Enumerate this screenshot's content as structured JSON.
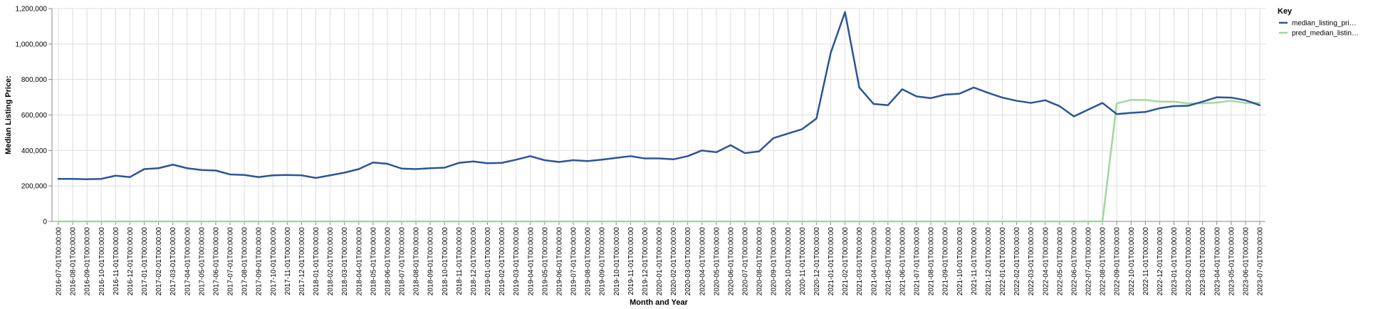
{
  "chart_data": {
    "type": "line",
    "xlabel": "Month and Year",
    "ylabel": "Median Listing Price:",
    "ylim": [
      0,
      1200000
    ],
    "yticks": [
      "0",
      "200,000",
      "400,000",
      "600,000",
      "800,000",
      "1,000,000",
      "1,200,000"
    ],
    "grid": true,
    "legend": {
      "title": "Key",
      "position": "right"
    },
    "x": [
      "2016-07-01T00:00:00",
      "2016-08-01T00:00:00",
      "2016-09-01T00:00:00",
      "2016-10-01T00:00:00",
      "2016-11-01T00:00:00",
      "2016-12-01T00:00:00",
      "2017-01-01T00:00:00",
      "2017-02-01T00:00:00",
      "2017-03-01T00:00:00",
      "2017-04-01T00:00:00",
      "2017-05-01T00:00:00",
      "2017-06-01T00:00:00",
      "2017-07-01T00:00:00",
      "2017-08-01T00:00:00",
      "2017-09-01T00:00:00",
      "2017-10-01T00:00:00",
      "2017-11-01T00:00:00",
      "2017-12-01T00:00:00",
      "2018-01-01T00:00:00",
      "2018-02-01T00:00:00",
      "2018-03-01T00:00:00",
      "2018-04-01T00:00:00",
      "2018-05-01T00:00:00",
      "2018-06-01T00:00:00",
      "2018-07-01T00:00:00",
      "2018-08-01T00:00:00",
      "2018-09-01T00:00:00",
      "2018-10-01T00:00:00",
      "2018-11-01T00:00:00",
      "2018-12-01T00:00:00",
      "2019-01-01T00:00:00",
      "2019-02-01T00:00:00",
      "2019-03-01T00:00:00",
      "2019-04-01T00:00:00",
      "2019-05-01T00:00:00",
      "2019-06-01T00:00:00",
      "2019-07-01T00:00:00",
      "2019-08-01T00:00:00",
      "2019-09-01T00:00:00",
      "2019-10-01T00:00:00",
      "2019-11-01T00:00:00",
      "2019-12-01T00:00:00",
      "2020-01-01T00:00:00",
      "2020-02-01T00:00:00",
      "2020-03-01T00:00:00",
      "2020-04-01T00:00:00",
      "2020-05-01T00:00:00",
      "2020-06-01T00:00:00",
      "2020-07-01T00:00:00",
      "2020-08-01T00:00:00",
      "2020-09-01T00:00:00",
      "2020-10-01T00:00:00",
      "2020-11-01T00:00:00",
      "2020-12-01T00:00:00",
      "2021-01-01T00:00:00",
      "2021-02-01T00:00:00",
      "2021-03-01T00:00:00",
      "2021-04-01T00:00:00",
      "2021-05-01T00:00:00",
      "2021-06-01T00:00:00",
      "2021-07-01T00:00:00",
      "2021-08-01T00:00:00",
      "2021-09-01T00:00:00",
      "2021-10-01T00:00:00",
      "2021-11-01T00:00:00",
      "2021-12-01T00:00:00",
      "2022-01-01T00:00:00",
      "2022-02-01T00:00:00",
      "2022-03-01T00:00:00",
      "2022-04-01T00:00:00",
      "2022-05-01T00:00:00",
      "2022-06-01T00:00:00",
      "2022-07-01T00:00:00",
      "2022-08-01T00:00:00",
      "2022-09-01T00:00:00",
      "2022-10-01T00:00:00",
      "2022-11-01T00:00:00",
      "2022-12-01T00:00:00",
      "2023-01-01T00:00:00",
      "2023-02-01T00:00:00",
      "2023-03-01T00:00:00",
      "2023-04-01T00:00:00",
      "2023-05-01T00:00:00",
      "2023-06-01T00:00:00",
      "2023-07-01T00:00:00"
    ],
    "series": [
      {
        "name": "median_listing_pri…",
        "color": "#2b5597",
        "values": [
          240000,
          240000,
          238000,
          240000,
          258000,
          250000,
          295000,
          300000,
          320000,
          300000,
          290000,
          287000,
          265000,
          262000,
          250000,
          260000,
          262000,
          260000,
          245000,
          260000,
          275000,
          295000,
          332000,
          325000,
          298000,
          295000,
          300000,
          303000,
          330000,
          338000,
          328000,
          330000,
          348000,
          368000,
          345000,
          335000,
          345000,
          340000,
          348000,
          358000,
          368000,
          355000,
          355000,
          350000,
          368000,
          400000,
          390000,
          430000,
          385000,
          395000,
          470000,
          495000,
          520000,
          580000,
          950000,
          1180000,
          755000,
          662000,
          655000,
          745000,
          705000,
          695000,
          715000,
          720000,
          755000,
          725000,
          698000,
          680000,
          668000,
          683000,
          650000,
          592000,
          630000,
          668000,
          605000,
          612000,
          617000,
          638000,
          650000,
          652000,
          675000,
          700000,
          698000,
          683000,
          655000
        ]
      },
      {
        "name": "pred_median_listin…",
        "color": "#9fd99a",
        "values": [
          0,
          0,
          0,
          0,
          0,
          0,
          0,
          0,
          0,
          0,
          0,
          0,
          0,
          0,
          0,
          0,
          0,
          0,
          0,
          0,
          0,
          0,
          0,
          0,
          0,
          0,
          0,
          0,
          0,
          0,
          0,
          0,
          0,
          0,
          0,
          0,
          0,
          0,
          0,
          0,
          0,
          0,
          0,
          0,
          0,
          0,
          0,
          0,
          0,
          0,
          0,
          0,
          0,
          0,
          0,
          0,
          0,
          0,
          0,
          0,
          0,
          0,
          0,
          0,
          0,
          0,
          0,
          0,
          0,
          0,
          0,
          0,
          0,
          0,
          665000,
          685000,
          685000,
          675000,
          675000,
          665000,
          665000,
          670000,
          680000,
          668000,
          668000
        ]
      }
    ]
  }
}
